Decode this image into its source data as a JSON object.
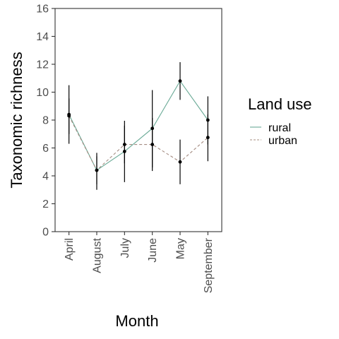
{
  "chart_data": {
    "type": "line",
    "xlabel": "Month",
    "ylabel": "Taxonomic richness",
    "categories": [
      "April",
      "August",
      "July",
      "June",
      "May",
      "September"
    ],
    "ylim": [
      0,
      16
    ],
    "yticks": [
      "0",
      "2",
      "4",
      "6",
      "8",
      "10",
      "12",
      "14",
      "16"
    ],
    "legend": {
      "title": "Land use",
      "placement": "right"
    },
    "grid": false,
    "series": [
      {
        "name": "rural",
        "color": "#6aaa96",
        "line_style": "solid",
        "values": [
          8.4,
          4.4,
          5.75,
          7.4,
          10.8,
          8.0
        ],
        "error_low": [
          6.3,
          3.4,
          3.55,
          4.6,
          9.45,
          6.25
        ],
        "error_high": [
          10.5,
          5.4,
          7.95,
          10.15,
          12.15,
          9.7
        ]
      },
      {
        "name": "urban",
        "color": "#a48c82",
        "line_style": "dashed",
        "values": [
          8.3,
          4.4,
          6.25,
          6.25,
          5.0,
          6.75
        ],
        "error_low": [
          7.0,
          3.0,
          4.9,
          4.35,
          3.4,
          5.05
        ],
        "error_high": [
          9.55,
          5.65,
          7.6,
          8.15,
          6.6,
          8.4
        ]
      }
    ]
  }
}
